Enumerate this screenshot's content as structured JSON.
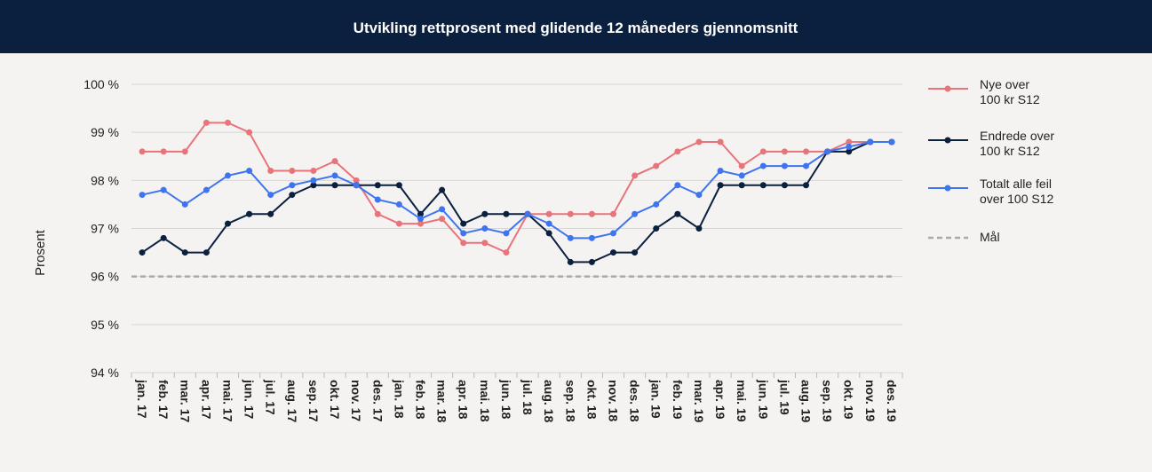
{
  "chart_data": {
    "type": "line",
    "title": "Utvikling rettprosent med glidende 12 måneders gjennomsnitt",
    "y_label": "Prosent",
    "categories": [
      "jan. 17",
      "feb. 17",
      "mar. 17",
      "apr. 17",
      "mai. 17",
      "jun. 17",
      "jul. 17",
      "aug. 17",
      "sep. 17",
      "okt. 17",
      "nov. 17",
      "des. 17",
      "jan. 18",
      "feb. 18",
      "mar. 18",
      "apr. 18",
      "mai. 18",
      "jun. 18",
      "jul. 18",
      "aug. 18",
      "sep. 18",
      "okt. 18",
      "nov. 18",
      "des. 18",
      "jan. 19",
      "feb. 19",
      "mar. 19",
      "apr. 19",
      "mai. 19",
      "jun. 19",
      "jul. 19",
      "aug. 19",
      "sep. 19",
      "okt. 19",
      "nov. 19",
      "des. 19"
    ],
    "series": [
      {
        "name": "Nye over\n100 kr S12",
        "color": "#e8747a",
        "values": [
          98.6,
          98.6,
          98.6,
          99.2,
          99.2,
          99.0,
          98.2,
          98.2,
          98.2,
          98.4,
          98.0,
          97.3,
          97.1,
          97.1,
          97.2,
          96.7,
          96.7,
          96.5,
          97.3,
          97.3,
          97.3,
          97.3,
          97.3,
          98.1,
          98.3,
          98.6,
          98.8,
          98.8,
          98.3,
          98.6,
          98.6,
          98.6,
          98.6,
          98.8,
          98.8,
          98.8
        ]
      },
      {
        "name": "Endrede over\n100 kr S12",
        "color": "#0b1f3f",
        "values": [
          96.5,
          96.8,
          96.5,
          96.5,
          97.1,
          97.3,
          97.3,
          97.7,
          97.9,
          97.9,
          97.9,
          97.9,
          97.9,
          97.3,
          97.8,
          97.1,
          97.3,
          97.3,
          97.3,
          96.9,
          96.3,
          96.3,
          96.5,
          96.5,
          97.0,
          97.3,
          97.0,
          97.9,
          97.9,
          97.9,
          97.9,
          97.9,
          98.6,
          98.6,
          98.8,
          98.8
        ]
      },
      {
        "name": "Totalt alle feil\n over 100 S12",
        "color": "#3f74f0",
        "values": [
          97.7,
          97.8,
          97.5,
          97.8,
          98.1,
          98.2,
          97.7,
          97.9,
          98.0,
          98.1,
          97.9,
          97.6,
          97.5,
          97.2,
          97.4,
          96.9,
          97.0,
          96.9,
          97.3,
          97.1,
          96.8,
          96.8,
          96.9,
          97.3,
          97.5,
          97.9,
          97.7,
          98.2,
          98.1,
          98.3,
          98.3,
          98.3,
          98.6,
          98.7,
          98.8,
          98.8
        ]
      }
    ],
    "target": {
      "name": "Mål",
      "value": 96,
      "color": "#aaaaaa"
    },
    "ylim": [
      94,
      100
    ],
    "yticks": [
      {
        "value": 94,
        "label": "94 %"
      },
      {
        "value": 95,
        "label": "95 %"
      },
      {
        "value": 96,
        "label": "96 %"
      },
      {
        "value": 97,
        "label": "97 %"
      },
      {
        "value": 98,
        "label": "98 %"
      },
      {
        "value": 99,
        "label": "99 %"
      },
      {
        "value": 100,
        "label": "100 %"
      }
    ],
    "grid": true
  }
}
